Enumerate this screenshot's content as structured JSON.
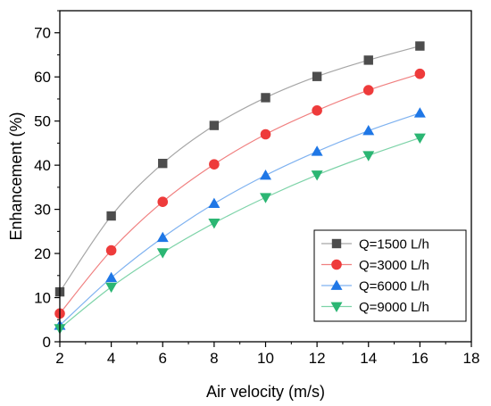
{
  "chart_data": {
    "type": "line",
    "xlabel": "Air velocity (m/s)",
    "ylabel": "Enhancement (%)",
    "xlim": [
      2,
      18
    ],
    "ylim": [
      0,
      75
    ],
    "xticks": [
      2,
      4,
      6,
      8,
      10,
      12,
      14,
      16,
      18
    ],
    "yticks": [
      0,
      10,
      20,
      30,
      40,
      50,
      60,
      70
    ],
    "grid": false,
    "legend_position": "bottom-right",
    "x": [
      2,
      4,
      6,
      8,
      10,
      12,
      14,
      16
    ],
    "series": [
      {
        "name": "Q=1500 L/h",
        "marker": "square",
        "color": "#4d4d4d",
        "line_color": "#a6a6a6",
        "values": [
          11.3,
          28.5,
          40.4,
          49.0,
          55.3,
          60.1,
          63.8,
          67.0
        ]
      },
      {
        "name": "Q=3000 L/h",
        "marker": "circle",
        "color": "#ee3b3b",
        "line_color": "#f08080",
        "values": [
          6.4,
          20.7,
          31.7,
          40.2,
          47.0,
          52.4,
          57.0,
          60.7
        ]
      },
      {
        "name": "Q=6000 L/h",
        "marker": "triangle-up",
        "color": "#1f77e6",
        "line_color": "#7fb2f0",
        "values": [
          3.7,
          14.5,
          23.6,
          31.3,
          37.7,
          43.1,
          47.8,
          51.8
        ]
      },
      {
        "name": "Q=9000 L/h",
        "marker": "triangle-down",
        "color": "#2bb673",
        "line_color": "#7dd3a8",
        "values": [
          3.0,
          12.4,
          20.2,
          26.9,
          32.7,
          37.8,
          42.2,
          46.2
        ]
      }
    ]
  }
}
